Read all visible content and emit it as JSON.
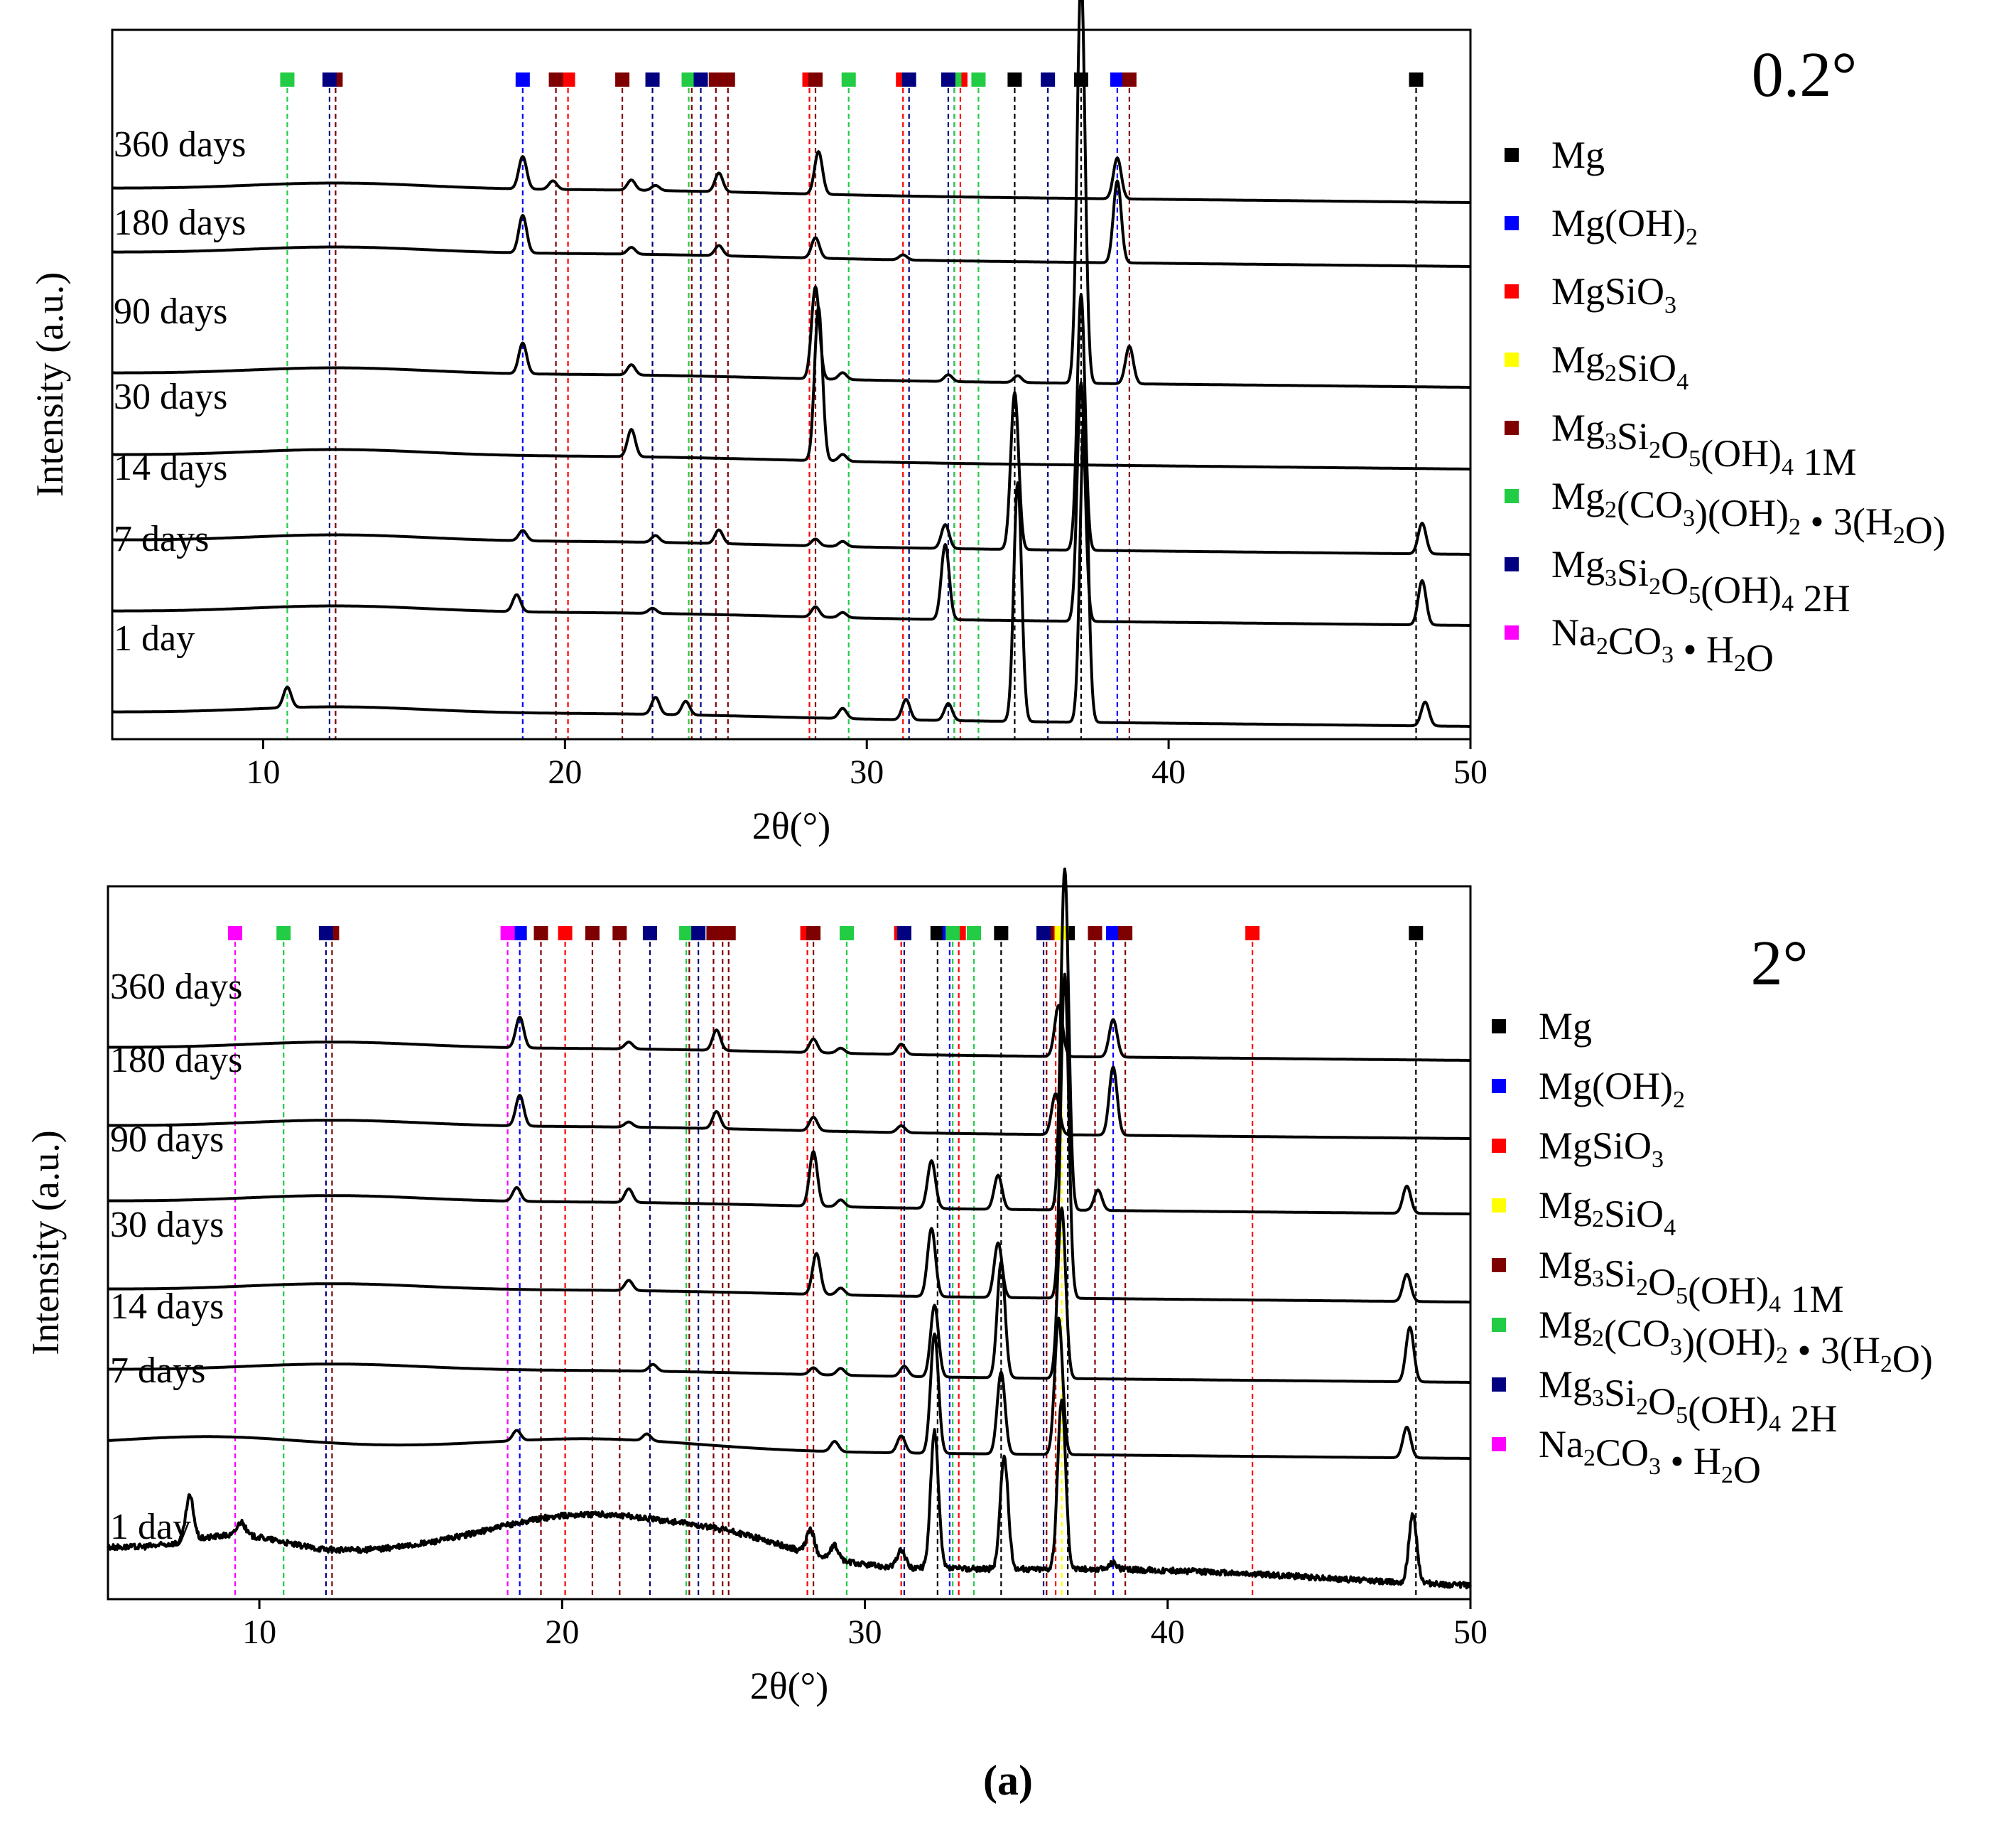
{
  "figure": {
    "caption": "a"
  },
  "panel_titles": [
    "0.2°",
    "2°"
  ],
  "chart_data": [
    {
      "type": "line",
      "title": "0.2°",
      "xlabel": "2θ(°)",
      "ylabel": "Intensity (a.u.)",
      "xlim": [
        5,
        50
      ],
      "xticks": [
        10,
        20,
        30,
        40,
        50
      ],
      "grid": false,
      "legend_position": "right",
      "series": [
        {
          "name": "360 days",
          "peaks": [
            [
              18.6,
              0.95
            ],
            [
              19.6,
              0.25
            ],
            [
              22.2,
              0.3
            ],
            [
              23.0,
              0.15
            ],
            [
              25.1,
              0.55
            ],
            [
              28.4,
              1.25
            ],
            [
              38.3,
              1.2
            ]
          ]
        },
        {
          "name": "180 days",
          "peaks": [
            [
              18.6,
              1.1
            ],
            [
              22.2,
              0.2
            ],
            [
              25.1,
              0.3
            ],
            [
              28.3,
              0.6
            ],
            [
              31.2,
              0.15
            ],
            [
              38.3,
              2.4
            ]
          ]
        },
        {
          "name": "90 days",
          "peaks": [
            [
              18.6,
              0.9
            ],
            [
              22.2,
              0.3
            ],
            [
              28.3,
              2.7
            ],
            [
              29.2,
              0.2
            ],
            [
              32.7,
              0.2
            ],
            [
              35.0,
              0.2
            ],
            [
              37.1,
              12.0
            ],
            [
              38.7,
              1.1
            ]
          ]
        },
        {
          "name": "30 days",
          "peaks": [
            [
              22.2,
              0.8
            ],
            [
              28.4,
              4.5
            ],
            [
              29.2,
              0.2
            ]
          ]
        },
        {
          "name": "14 days",
          "peaks": [
            [
              18.6,
              0.3
            ],
            [
              23.0,
              0.2
            ],
            [
              25.1,
              0.4
            ],
            [
              28.3,
              0.2
            ],
            [
              29.2,
              0.15
            ],
            [
              32.6,
              0.7
            ],
            [
              34.9,
              4.6
            ],
            [
              37.1,
              7.5
            ],
            [
              48.4,
              0.9
            ]
          ]
        },
        {
          "name": "7 days",
          "peaks": [
            [
              18.4,
              0.5
            ],
            [
              22.9,
              0.15
            ],
            [
              28.3,
              0.3
            ],
            [
              29.2,
              0.15
            ],
            [
              32.6,
              2.2
            ],
            [
              37.1,
              7.0
            ],
            [
              48.4,
              1.3
            ]
          ]
        },
        {
          "name": "1 day",
          "peaks": [
            [
              10.8,
              0.6
            ],
            [
              23.0,
              0.5
            ],
            [
              24.0,
              0.4
            ],
            [
              29.2,
              0.3
            ],
            [
              31.3,
              0.6
            ],
            [
              32.7,
              0.5
            ],
            [
              35.0,
              7.0
            ],
            [
              37.2,
              9.0
            ],
            [
              48.5,
              0.7
            ]
          ]
        }
      ],
      "reference_markers": [
        {
          "phase": "Mg",
          "positions": [
            34.9,
            37.1,
            48.2
          ]
        },
        {
          "phase": "Mg(OH)2",
          "positions": [
            18.6,
            32.9,
            38.3
          ]
        },
        {
          "phase": "MgSiO3",
          "positions": [
            20.1,
            28.1,
            31.2,
            33.1
          ]
        },
        {
          "phase": "Mg2SiO4",
          "positions": [
            22.9
          ]
        },
        {
          "phase": "Mg3Si2O5(OH)4 1M",
          "positions": [
            12.4,
            19.7,
            21.9,
            24.2,
            25.0,
            25.4,
            28.3,
            38.7
          ]
        },
        {
          "phase": "Mg2(CO3)(OH)2 • 3(H2O)",
          "positions": [
            10.8,
            24.1,
            29.4,
            32.9,
            33.7
          ]
        },
        {
          "phase": "Mg3Si2O5(OH)4 2H",
          "positions": [
            12.2,
            22.9,
            24.5,
            31.4,
            32.7,
            36.0
          ]
        },
        {
          "phase": "Na2CO3 • H2O",
          "positions": []
        }
      ]
    },
    {
      "type": "line",
      "title": "2°",
      "xlabel": "2θ(°)",
      "ylabel": "Intensity (a.u.)",
      "xlim": [
        5,
        50
      ],
      "xticks": [
        10,
        20,
        30,
        40,
        50
      ],
      "grid": false,
      "legend_position": "right",
      "series": [
        {
          "name": "360 days",
          "peaks": [
            [
              18.6,
              0.9
            ],
            [
              22.2,
              0.2
            ],
            [
              25.1,
              0.6
            ],
            [
              28.3,
              0.4
            ],
            [
              29.2,
              0.15
            ],
            [
              31.2,
              0.3
            ],
            [
              36.4,
              1.5
            ],
            [
              38.2,
              1.1
            ]
          ]
        },
        {
          "name": "180 days",
          "peaks": [
            [
              18.6,
              0.9
            ],
            [
              22.2,
              0.15
            ],
            [
              25.1,
              0.5
            ],
            [
              28.3,
              0.4
            ],
            [
              31.2,
              0.2
            ],
            [
              36.3,
              1.2
            ],
            [
              38.2,
              2.0
            ]
          ]
        },
        {
          "name": "90 days",
          "peaks": [
            [
              18.5,
              0.4
            ],
            [
              22.2,
              0.4
            ],
            [
              28.3,
              1.6
            ],
            [
              29.2,
              0.2
            ],
            [
              32.2,
              1.4
            ],
            [
              34.4,
              1.0
            ],
            [
              36.6,
              10.0
            ],
            [
              37.7,
              0.6
            ],
            [
              47.9,
              0.8
            ]
          ]
        },
        {
          "name": "30 days",
          "peaks": [
            [
              22.2,
              0.3
            ],
            [
              28.4,
              1.2
            ],
            [
              29.2,
              0.2
            ],
            [
              32.2,
              2.0
            ],
            [
              34.4,
              1.6
            ],
            [
              36.6,
              9.5
            ],
            [
              47.9,
              0.8
            ]
          ]
        },
        {
          "name": "14 days",
          "peaks": [
            [
              23.0,
              0.2
            ],
            [
              28.3,
              0.2
            ],
            [
              29.2,
              0.2
            ],
            [
              31.3,
              0.3
            ],
            [
              32.3,
              2.1
            ],
            [
              34.5,
              3.4
            ],
            [
              36.5,
              5.0
            ],
            [
              48.0,
              1.6
            ]
          ]
        },
        {
          "name": "7 days",
          "peaks": [
            [
              18.5,
              0.3
            ],
            [
              22.8,
              0.2
            ],
            [
              29.0,
              0.3
            ],
            [
              31.2,
              0.5
            ],
            [
              32.3,
              3.5
            ],
            [
              34.5,
              2.4
            ],
            [
              36.4,
              4.0
            ],
            [
              47.9,
              0.9
            ]
          ]
        },
        {
          "name": "1 day",
          "peaks": [
            [
              7.7,
              1.3
            ],
            [
              9.4,
              0.4
            ],
            [
              28.2,
              0.7
            ],
            [
              29.0,
              0.4
            ],
            [
              31.2,
              0.5
            ],
            [
              32.3,
              4.0
            ],
            [
              34.6,
              3.3
            ],
            [
              36.5,
              5.0
            ],
            [
              38.2,
              0.2
            ],
            [
              48.1,
              2.0
            ]
          ]
        }
      ],
      "reference_markers": [
        {
          "phase": "Mg",
          "positions": [
            32.4,
            34.5,
            36.7,
            48.2
          ]
        },
        {
          "phase": "Mg(OH)2",
          "positions": [
            18.6,
            32.8,
            38.2
          ]
        },
        {
          "phase": "MgSiO3",
          "positions": [
            20.1,
            28.1,
            31.2,
            33.1,
            36.3,
            42.8
          ]
        },
        {
          "phase": "Mg2SiO4",
          "positions": [
            22.9,
            36.5
          ]
        },
        {
          "phase": "Mg3Si2O5(OH)4 1M",
          "positions": [
            12.4,
            19.3,
            21.0,
            21.9,
            24.2,
            25.0,
            25.3,
            25.5,
            28.3,
            36.0,
            37.6,
            38.6
          ]
        },
        {
          "phase": "Mg2(CO3)(OH)2 • 3(H2O)",
          "positions": [
            10.8,
            24.1,
            29.4,
            32.9,
            33.6
          ]
        },
        {
          "phase": "Mg3Si2O5(OH)4 2H",
          "positions": [
            12.2,
            22.9,
            24.5,
            31.3,
            35.9
          ]
        },
        {
          "phase": "Na2CO3 • H2O",
          "positions": [
            9.2,
            18.2
          ]
        }
      ]
    }
  ],
  "legend": [
    {
      "key": "mg",
      "color": "#000000",
      "base": "Mg",
      "segments": [
        {
          "t": "Mg"
        }
      ]
    },
    {
      "key": "mgoh2",
      "color": "#0000FF",
      "base": "Mg(OH)2",
      "segments": [
        {
          "t": "Mg(OH)"
        },
        {
          "s": "2"
        }
      ]
    },
    {
      "key": "mgsio3",
      "color": "#FF0000",
      "base": "MgSiO3",
      "segments": [
        {
          "t": "MgSiO"
        },
        {
          "s": "3"
        }
      ]
    },
    {
      "key": "mg2sio4",
      "color": "#FFFF00",
      "base": "Mg2SiO4",
      "segments": [
        {
          "t": "Mg"
        },
        {
          "s": "2"
        },
        {
          "t": "SiO"
        },
        {
          "s": "4"
        }
      ]
    },
    {
      "key": "lizardite1m",
      "color": "#7F0000",
      "base": "Mg3Si2O5(OH)4 1M",
      "segments": [
        {
          "t": "Mg"
        },
        {
          "s": "3"
        },
        {
          "t": "Si"
        },
        {
          "s": "2"
        },
        {
          "t": "O"
        },
        {
          "s": "5"
        },
        {
          "t": "(OH)"
        },
        {
          "s": "4"
        },
        {
          "t": "  1M"
        }
      ]
    },
    {
      "key": "artinite",
      "color": "#22CC44",
      "base": "Mg2(CO3)(OH)2 • 3(H2O)",
      "segments": [
        {
          "t": "Mg"
        },
        {
          "s": "2"
        },
        {
          "t": "(CO"
        },
        {
          "s": "3"
        },
        {
          "t": ")(OH)"
        },
        {
          "s": "2"
        },
        {
          "t": " • 3(H"
        },
        {
          "s": "2"
        },
        {
          "t": "O)"
        }
      ]
    },
    {
      "key": "lizardite2h",
      "color": "#000080",
      "base": "Mg3Si2O5(OH)4 2H",
      "segments": [
        {
          "t": "Mg"
        },
        {
          "s": "3"
        },
        {
          "t": "Si"
        },
        {
          "s": "2"
        },
        {
          "t": "O"
        },
        {
          "s": "5"
        },
        {
          "t": "(OH)"
        },
        {
          "s": "4"
        },
        {
          "t": "  2H"
        }
      ]
    },
    {
      "key": "thermonatrite",
      "color": "#FF00FF",
      "base": "Na2CO3 • H2O",
      "segments": [
        {
          "t": "Na"
        },
        {
          "s": "2"
        },
        {
          "t": "CO"
        },
        {
          "s": "3"
        },
        {
          "t": " • H"
        },
        {
          "s": "2"
        },
        {
          "t": "O"
        }
      ]
    }
  ]
}
